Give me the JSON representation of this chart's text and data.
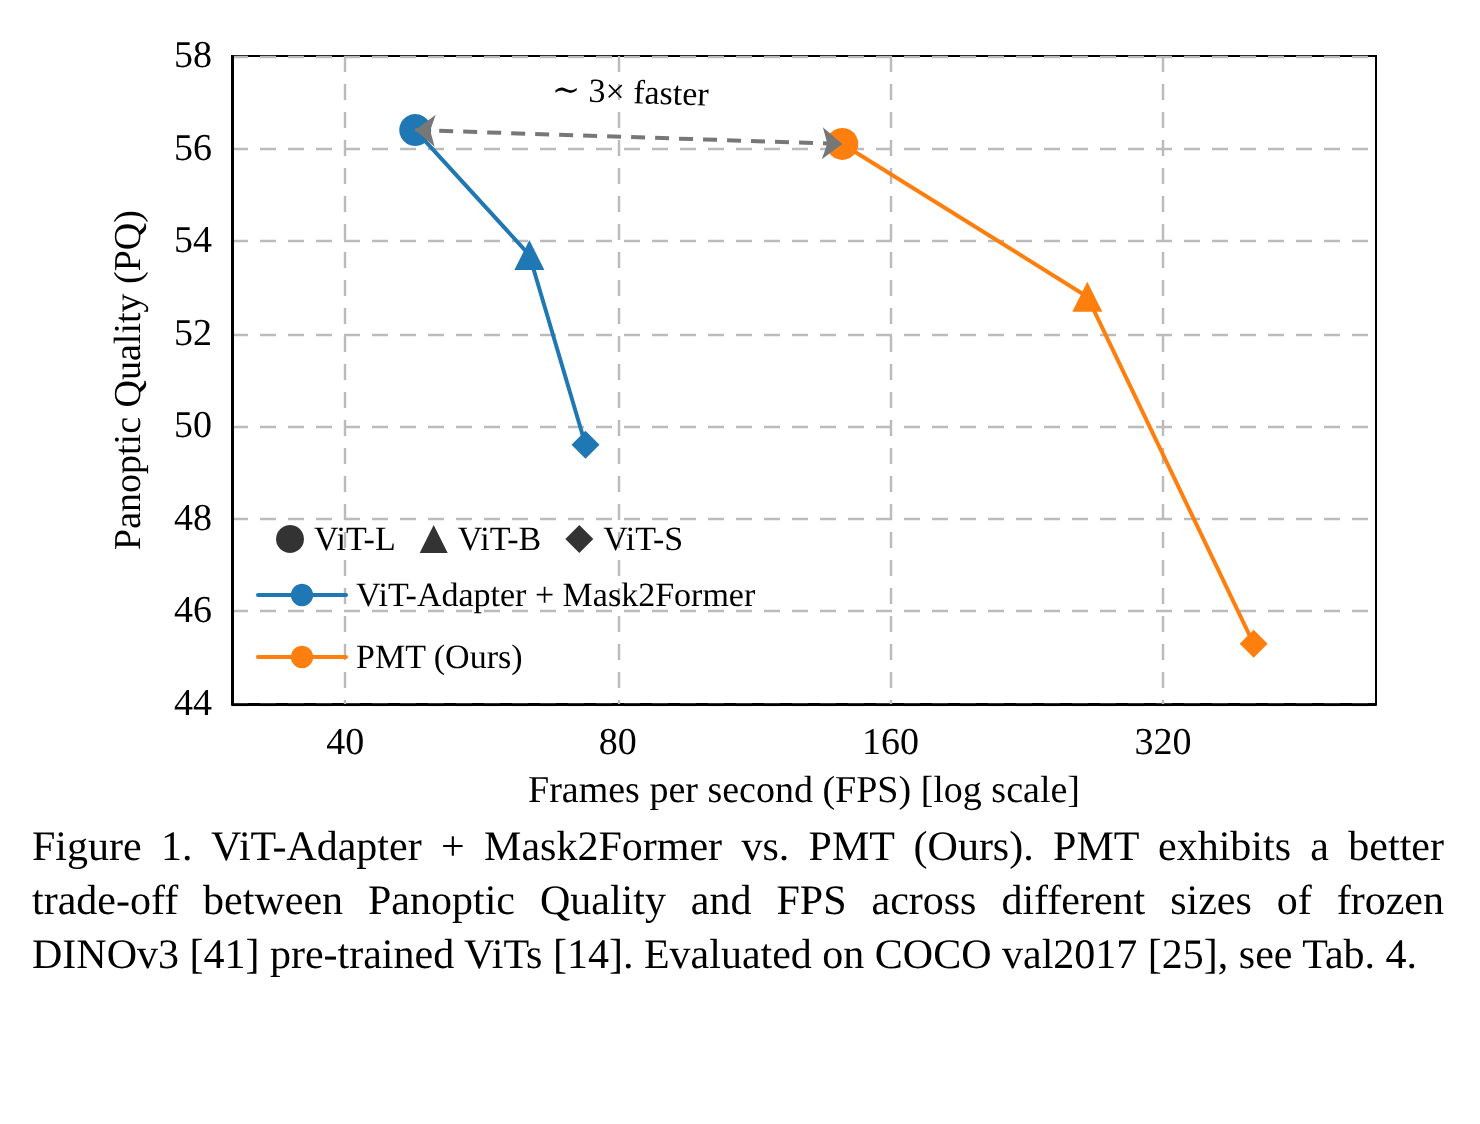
{
  "chart_data": {
    "type": "line",
    "xlabel": "Frames per second (FPS) [log scale]",
    "ylabel": "Panoptic Quality (PQ)",
    "log": "x",
    "xlim": [
      30,
      550
    ],
    "xticks": [
      40,
      80,
      160,
      320
    ],
    "ylim": [
      44,
      58
    ],
    "yticks": [
      44,
      46,
      48,
      50,
      52,
      54,
      56,
      58
    ],
    "grid": true,
    "line_style": "solid",
    "legend": "bottom left",
    "series": [
      {
        "name": "ViT-L",
        "type": "scatter",
        "color": "#000000",
        "marker": "circle"
      },
      {
        "name": "ViT-B",
        "type": "scatter",
        "color": "#000000",
        "marker": "triangle"
      },
      {
        "name": "ViT-S",
        "type": "scatter",
        "color": "#000000",
        "marker": "diamond"
      },
      {
        "name": "ViT-Adapter + Mask2Former",
        "color": "#1f77b4",
        "marker": [
          "circle",
          "triangle",
          "diamond"
        ],
        "x": [
          47.8,
          63.9,
          73.7
        ],
        "values": [
          56.4,
          53.7,
          49.6
        ]
      },
      {
        "name": "PMT (Ours)",
        "color": "#ff7f0e",
        "marker": [
          "circle",
          "triangle",
          "diamond"
        ],
        "x": [
          141.6,
          264,
          403
        ],
        "values": [
          56.1,
          52.8,
          45.3
        ]
      }
    ],
    "annotations": [
      "∼ 3× faster",
      "Figure 1. ViT-Adapter + Mask2Former vs. PMT (Ours). PMT exhibits a better trade-off between Panoptic Quality and FPS across different sizes of frozen DINOv3 [41] pre-trained ViTs [14]. Evaluated on COCO val2017 [25], see Tab. 4."
    ]
  }
}
